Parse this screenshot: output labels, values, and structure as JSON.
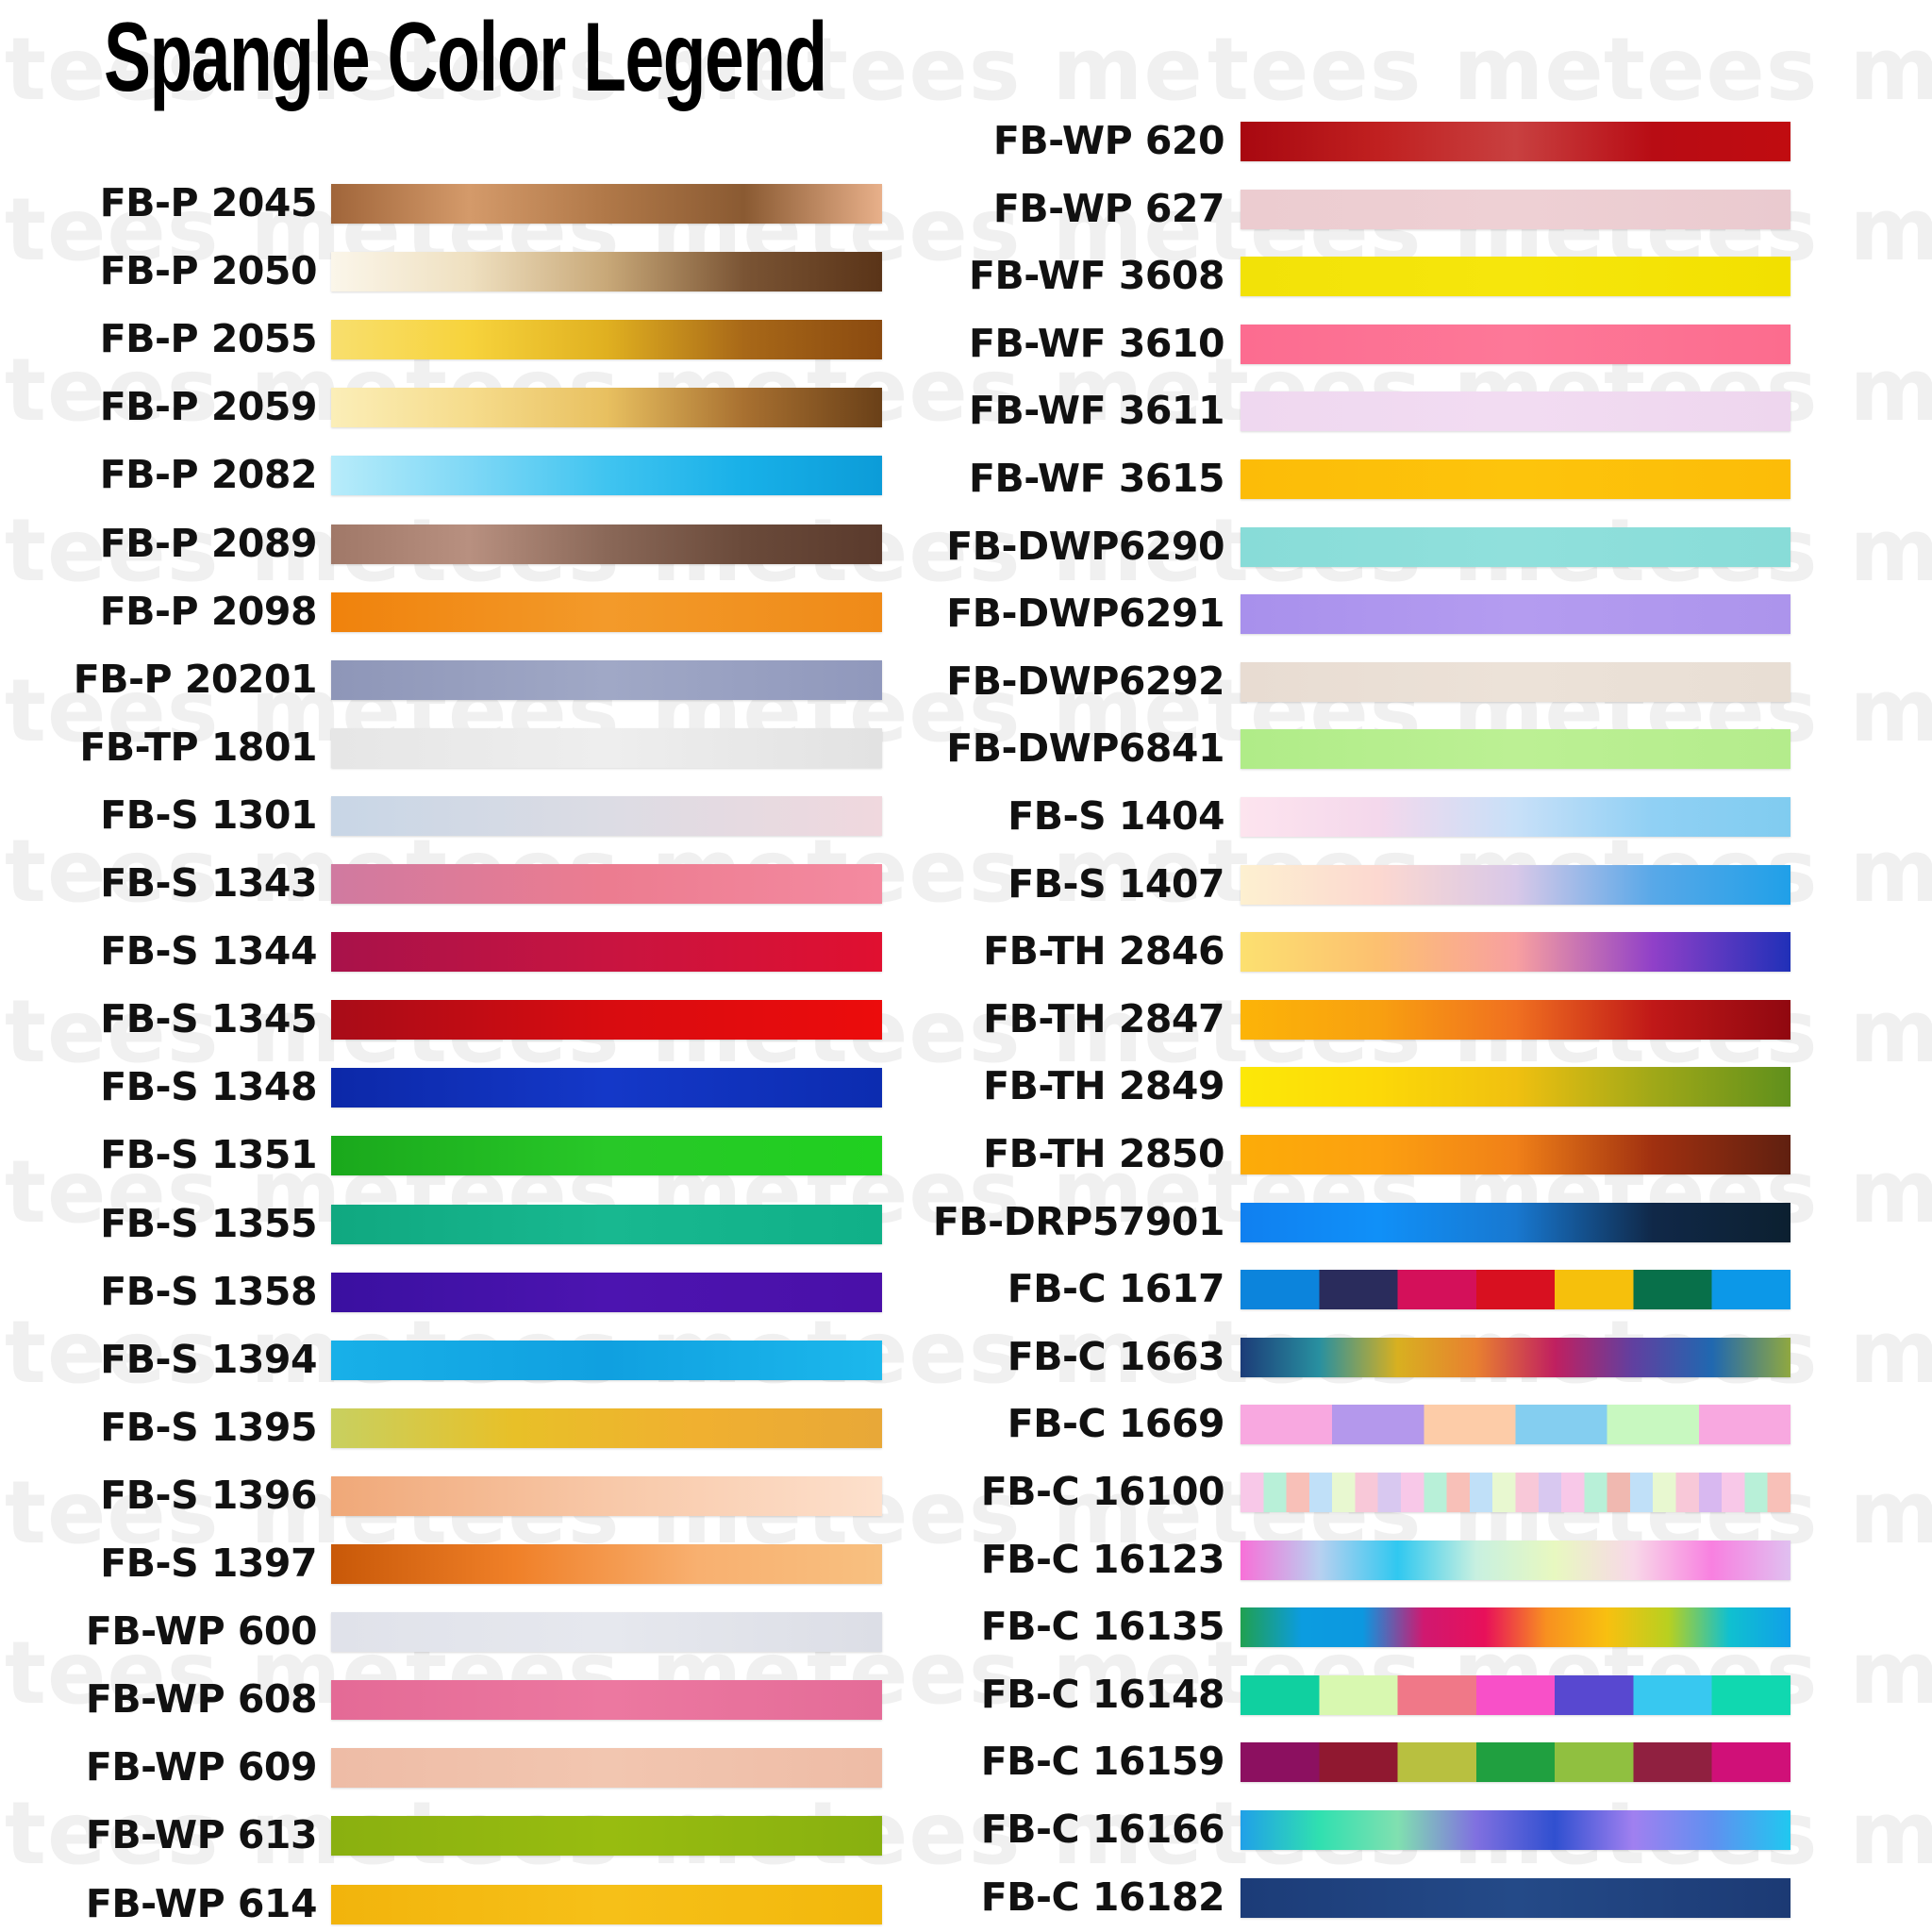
{
  "title": "Spangle Color Legend",
  "watermark": "tees me",
  "left_column": [
    {
      "code": "FB-P 2045",
      "colors": [
        "#a0653a",
        "#d49a6a",
        "#b07848",
        "#8a5a32",
        "#e8b08a"
      ]
    },
    {
      "code": "FB-P 2050",
      "colors": [
        "#fbf6ea",
        "#efe0c0",
        "#c8a878",
        "#7a5434",
        "#5a3418"
      ]
    },
    {
      "code": "FB-P 2055",
      "colors": [
        "#f8df6e",
        "#f7d33c",
        "#e0b020",
        "#a86818",
        "#8a4a10"
      ]
    },
    {
      "code": "FB-P 2059",
      "colors": [
        "#fbeeb8",
        "#f6dc8c",
        "#e8c060",
        "#a87030",
        "#6a4018"
      ]
    },
    {
      "code": "FB-P 2082",
      "colors": [
        "#b8ecfa",
        "#7fd8f6",
        "#40c4f0",
        "#18b0e8",
        "#0c9cd8"
      ]
    },
    {
      "code": "FB-P 2089",
      "colors": [
        "#a07868",
        "#b89080",
        "#8a6858",
        "#6a4a3a",
        "#5a3a2c"
      ]
    },
    {
      "code": "FB-P 2098",
      "colors": [
        "#f0820c",
        "#f39a2a",
        "#ef8a18"
      ]
    },
    {
      "code": "FB-P 20201",
      "colors": [
        "#8e96b8",
        "#a0a8c6",
        "#9098bc"
      ]
    },
    {
      "code": "FB-TP 1801",
      "colors": [
        "#e6e6e6",
        "#eeeeee",
        "#e2e2e2"
      ]
    },
    {
      "code": "FB-S 1301",
      "colors": [
        "#c8d6e6",
        "#dcdce4",
        "#f0d8de"
      ]
    },
    {
      "code": "FB-S 1343",
      "colors": [
        "#d07aa0",
        "#ec7c90",
        "#f48aa0"
      ]
    },
    {
      "code": "FB-S 1344",
      "colors": [
        "#a8124a",
        "#c81440",
        "#e01030"
      ]
    },
    {
      "code": "FB-S 1345",
      "colors": [
        "#a80c18",
        "#d80c10",
        "#ec0c0c"
      ]
    },
    {
      "code": "FB-S 1348",
      "colors": [
        "#0c28a8",
        "#1438c8",
        "#0c2cb0"
      ]
    },
    {
      "code": "FB-S 1351",
      "colors": [
        "#1aa81c",
        "#28c828",
        "#20d020"
      ]
    },
    {
      "code": "FB-S 1355",
      "colors": [
        "#10a880",
        "#18b890",
        "#10b088"
      ]
    },
    {
      "code": "FB-S 1358",
      "colors": [
        "#3a10a0",
        "#4c14b0",
        "#4a10a8"
      ]
    },
    {
      "code": "FB-S 1394",
      "colors": [
        "#18b0e8",
        "#10a0e0",
        "#1cb8ec"
      ]
    },
    {
      "code": "FB-S 1395",
      "colors": [
        "#c8d060",
        "#e8c028",
        "#f0b030",
        "#e8a838"
      ]
    },
    {
      "code": "FB-S 1396",
      "colors": [
        "#f0a878",
        "#f8c8a8",
        "#fde0cc"
      ]
    },
    {
      "code": "FB-S 1397",
      "colors": [
        "#c85808",
        "#f08028",
        "#f8b070",
        "#f8c080"
      ]
    },
    {
      "code": "FB-WP 600",
      "colors": [
        "#e0e2ea",
        "#e6e8ee",
        "#dcdee6"
      ]
    },
    {
      "code": "FB-WP 608",
      "colors": [
        "#e46a96",
        "#ec78a0",
        "#e46c98"
      ]
    },
    {
      "code": "FB-WP 609",
      "colors": [
        "#eebca6",
        "#f2c6b0",
        "#eebca6"
      ]
    },
    {
      "code": "FB-WP 613",
      "colors": [
        "#8ab010",
        "#98bc10",
        "#88b010"
      ]
    },
    {
      "code": "FB-WP 614",
      "colors": [
        "#f2b40c",
        "#f6c018",
        "#f2b80c"
      ]
    }
  ],
  "right_column": [
    {
      "code": "FB-WP 620",
      "colors": [
        "#a80810",
        "#c02020",
        "#c84040",
        "#b80c14",
        "#c00c10"
      ]
    },
    {
      "code": "FB-WP 627",
      "colors": [
        "#ecccd0",
        "#eed0d4",
        "#eacacf"
      ]
    },
    {
      "code": "FB-WF 3608",
      "colors": [
        "#f2e208",
        "#f6e60c",
        "#f2e000"
      ]
    },
    {
      "code": "FB-WF 3610",
      "colors": [
        "#fc6c90",
        "#fd7898",
        "#fc6c8e"
      ]
    },
    {
      "code": "FB-WF 3611",
      "colors": [
        "#efd8f0",
        "#f2dcf2",
        "#eed6ee"
      ]
    },
    {
      "code": "FB-WF 3615",
      "colors": [
        "#fcbc08",
        "#fdc40c",
        "#fcbc08"
      ]
    },
    {
      "code": "FB-DWP6290",
      "colors": [
        "#88dcd8",
        "#90e0dc",
        "#88dcd8"
      ]
    },
    {
      "code": "FB-DWP6291",
      "colors": [
        "#a890ec",
        "#b49cf0",
        "#ac94ec"
      ]
    },
    {
      "code": "FB-DWP6292",
      "colors": [
        "#e8dcd2",
        "#ece2d8",
        "#e8ded4"
      ]
    },
    {
      "code": "FB-DWP6841",
      "colors": [
        "#b0ec88",
        "#bcf094",
        "#b4ec8c"
      ]
    },
    {
      "code": "FB-S 1404",
      "colors": [
        "#fde4ee",
        "#f4d8ec",
        "#c8e0f8",
        "#90d0f4",
        "#80ccf0"
      ]
    },
    {
      "code": "FB-S 1407",
      "colors": [
        "#fdf0d0",
        "#fcd8d0",
        "#d8c8e8",
        "#58a8e8",
        "#20a0e8"
      ]
    },
    {
      "code": "FB-TH 2846",
      "colors": [
        "#fce070",
        "#fcc070",
        "#f8a0a0",
        "#9040c8",
        "#2030b8"
      ]
    },
    {
      "code": "FB-TH 2847",
      "colors": [
        "#fcb408",
        "#f8a010",
        "#f07020",
        "#c01818",
        "#900810"
      ]
    },
    {
      "code": "FB-TH 2849",
      "colors": [
        "#fce808",
        "#fcd808",
        "#f0c010",
        "#a0a818",
        "#60901c"
      ]
    },
    {
      "code": "FB-TH 2850",
      "colors": [
        "#fcac08",
        "#fca010",
        "#f08018",
        "#a03010",
        "#602010"
      ]
    },
    {
      "code": "FB-DRP57901",
      "colors": [
        "#1080f0",
        "#1090f8",
        "#1878d0",
        "#102848",
        "#0c2030"
      ]
    },
    {
      "code": "FB-C 1617",
      "stripes": [
        "#0c84dc",
        "#2a2c5c",
        "#d4105a",
        "#d81020",
        "#f6c00c",
        "#08704a",
        "#0c98e8"
      ]
    },
    {
      "code": "FB-C 1663",
      "colors": [
        "#1c3c78",
        "#2890a0",
        "#d8b020",
        "#e88030",
        "#c02060",
        "#6040a0",
        "#2068b0",
        "#90a840"
      ]
    },
    {
      "code": "FB-C 1669",
      "stripes": [
        "#f8a8e0",
        "#b498ec",
        "#fdcca8",
        "#84cef0",
        "#c8f8c0",
        "#f8a8e0"
      ]
    },
    {
      "code": "FB-C 16100",
      "stripes": [
        "#f8c8e8",
        "#b8f0d8",
        "#f8c0b8",
        "#c0e0f8",
        "#e8f8d0",
        "#f8c8d8",
        "#d8c8f0",
        "#f8c8e8",
        "#b8f0d8",
        "#f8c0b8",
        "#c0e0f8",
        "#e8f8d0",
        "#f8c8d8",
        "#d8c8f0",
        "#f8c8e8",
        "#b8f0d8",
        "#f0b8b0",
        "#c0e0f8",
        "#e8f8d0",
        "#f8c8d8",
        "#d8b8f0",
        "#f8c8e8",
        "#b8f0d8",
        "#f8c0b8"
      ]
    },
    {
      "code": "FB-C 16123",
      "colors": [
        "#f870d8",
        "#b8d0f0",
        "#30c8f0",
        "#c8f0e0",
        "#e8f8c0",
        "#f8d8e8",
        "#f880e0",
        "#e0c0f0"
      ]
    },
    {
      "code": "FB-C 16135",
      "colors": [
        "#20a050",
        "#0c9ce0",
        "#0c98e0",
        "#d01870",
        "#e8105a",
        "#f89020",
        "#f8c010",
        "#b8d020",
        "#10c0d0",
        "#10a0e8"
      ]
    },
    {
      "code": "FB-C 16148",
      "stripes": [
        "#10d0a0",
        "#d8f8b0",
        "#f07888",
        "#f850c8",
        "#5848d0",
        "#38c8f0",
        "#10d8b0"
      ]
    },
    {
      "code": "FB-C 16159",
      "stripes": [
        "#8c1060",
        "#901830",
        "#b8c040",
        "#20a040",
        "#90c040",
        "#902040",
        "#d01078"
      ]
    },
    {
      "code": "FB-C 16166",
      "colors": [
        "#20a0e8",
        "#30e0b0",
        "#80e0b0",
        "#8070e0",
        "#3050d0",
        "#a080f0",
        "#6090f0",
        "#20c8f0"
      ]
    },
    {
      "code": "FB-C 16182",
      "colors": [
        "#1c3c78",
        "#244a88",
        "#1c3a74"
      ]
    }
  ]
}
